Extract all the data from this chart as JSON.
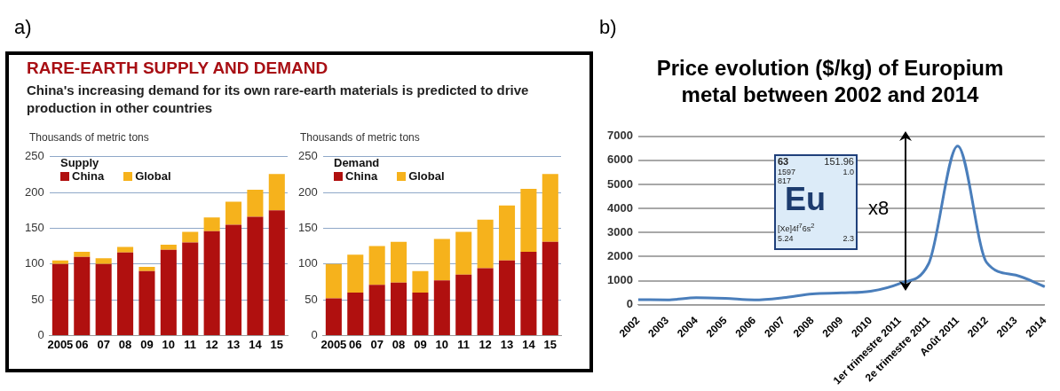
{
  "chart_data": [
    {
      "type": "bar",
      "title": "RARE-EARTH SUPPLY AND DEMAND",
      "subtitle": "China's increasing demand for its own rare-earth materials is predicted to drive production in other countries",
      "ylabel": "Thousands of metric tons",
      "legend_title": "Supply",
      "annotations": [
        "a)"
      ],
      "categories": [
        "2005",
        "06",
        "07",
        "08",
        "09",
        "10",
        "11",
        "12",
        "13",
        "14",
        "15"
      ],
      "series": [
        {
          "name": "China",
          "color": "#b0100f",
          "values": [
            100,
            110,
            100,
            116,
            90,
            120,
            130,
            146,
            155,
            166,
            175
          ]
        },
        {
          "name": "Global",
          "color": "#f6b21c",
          "values": [
            5,
            7,
            8,
            8,
            6,
            7,
            15,
            19,
            32,
            38,
            51
          ]
        }
      ],
      "stacked": true,
      "ylim": [
        0,
        250
      ],
      "yticks": [
        0,
        50,
        100,
        150,
        200,
        250
      ],
      "grid": "y",
      "legend": "top left"
    },
    {
      "type": "bar",
      "ylabel": "Thousands of metric tons",
      "legend_title": "Demand",
      "categories": [
        "2005",
        "06",
        "07",
        "08",
        "09",
        "10",
        "11",
        "12",
        "13",
        "14",
        "15"
      ],
      "series": [
        {
          "name": "China",
          "color": "#b0100f",
          "values": [
            52,
            60,
            71,
            74,
            60,
            77,
            85,
            94,
            105,
            117,
            131
          ]
        },
        {
          "name": "Global",
          "color": "#f6b21c",
          "values": [
            48,
            53,
            54,
            57,
            30,
            58,
            60,
            68,
            77,
            88,
            95
          ]
        }
      ],
      "stacked": true,
      "ylim": [
        0,
        250
      ],
      "yticks": [
        0,
        50,
        100,
        150,
        200,
        250
      ],
      "grid": "y",
      "legend": "top left"
    },
    {
      "type": "line",
      "title": "Price evolution ($/kg) of Europium metal between 2002 and 2014",
      "annotations": [
        "b)",
        "x8",
        "63",
        "151.96",
        "1597",
        "1.0",
        "817",
        "Eu",
        "[Xe]4f$^{7}$6s$^{2}$",
        "5.24",
        "2.3"
      ],
      "categories": [
        "2002",
        "2003",
        "2004",
        "2005",
        "2006",
        "2007",
        "2008",
        "2009",
        "2010",
        "1er trimestre 2011",
        "2e trimestre 2011",
        "Août 2011",
        "2012",
        "2013",
        "2014"
      ],
      "series": [
        {
          "color": "#4a7ebb",
          "values": [
            210,
            200,
            290,
            260,
            200,
            290,
            450,
            490,
            560,
            880,
            1700,
            6600,
            1750,
            1230,
            750
          ]
        }
      ],
      "ylim": [
        0,
        7000
      ],
      "yticks": [
        0,
        1000,
        2000,
        3000,
        4000,
        5000,
        6000,
        7000
      ],
      "grid": "y",
      "marker": "none",
      "line_style": "solid"
    }
  ]
}
